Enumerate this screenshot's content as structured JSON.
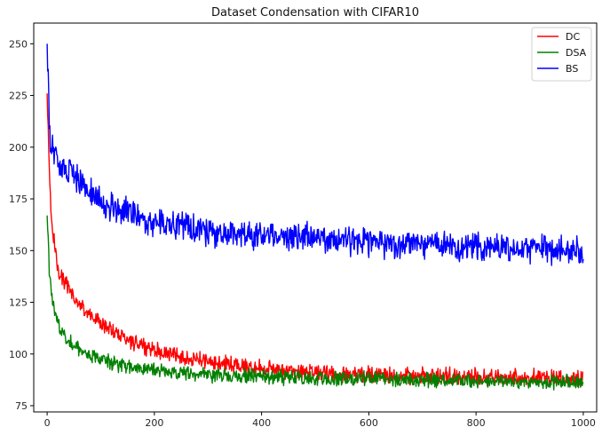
{
  "chart_data": {
    "type": "line",
    "title": "Dataset Condensation with CIFAR10",
    "xlabel": "",
    "ylabel": "",
    "xlim": [
      -25,
      1025
    ],
    "ylim": [
      72,
      260
    ],
    "x_ticks": [
      0,
      200,
      400,
      600,
      800,
      1000
    ],
    "y_ticks": [
      75,
      100,
      125,
      150,
      175,
      200,
      225,
      250
    ],
    "grid": false,
    "legend_position": "top-right",
    "series": [
      {
        "name": "DC",
        "color": "#ff0000",
        "x": [
          0,
          5,
          10,
          20,
          30,
          50,
          75,
          100,
          150,
          200,
          300,
          400,
          500,
          600,
          700,
          800,
          900,
          1000
        ],
        "y": [
          226,
          180,
          160,
          142,
          136,
          127,
          120,
          115,
          107,
          102,
          96,
          93,
          91,
          90,
          89.5,
          89,
          88.5,
          88
        ]
      },
      {
        "name": "DSA",
        "color": "#008000",
        "x": [
          0,
          5,
          10,
          20,
          30,
          50,
          75,
          100,
          150,
          200,
          300,
          400,
          500,
          600,
          700,
          800,
          900,
          1000
        ],
        "y": [
          167,
          135,
          125,
          115,
          110,
          104,
          100,
          97,
          94,
          92,
          90,
          89,
          88.5,
          88,
          87.5,
          87,
          86.5,
          86
        ]
      },
      {
        "name": "BS",
        "color": "#0000ff",
        "x": [
          0,
          5,
          10,
          20,
          30,
          50,
          75,
          100,
          150,
          200,
          300,
          400,
          500,
          600,
          700,
          800,
          900,
          1000
        ],
        "y": [
          250,
          205,
          198,
          192,
          189,
          185,
          179,
          174,
          168,
          164,
          159,
          157,
          156,
          154,
          153,
          152,
          151,
          150
        ]
      }
    ]
  }
}
